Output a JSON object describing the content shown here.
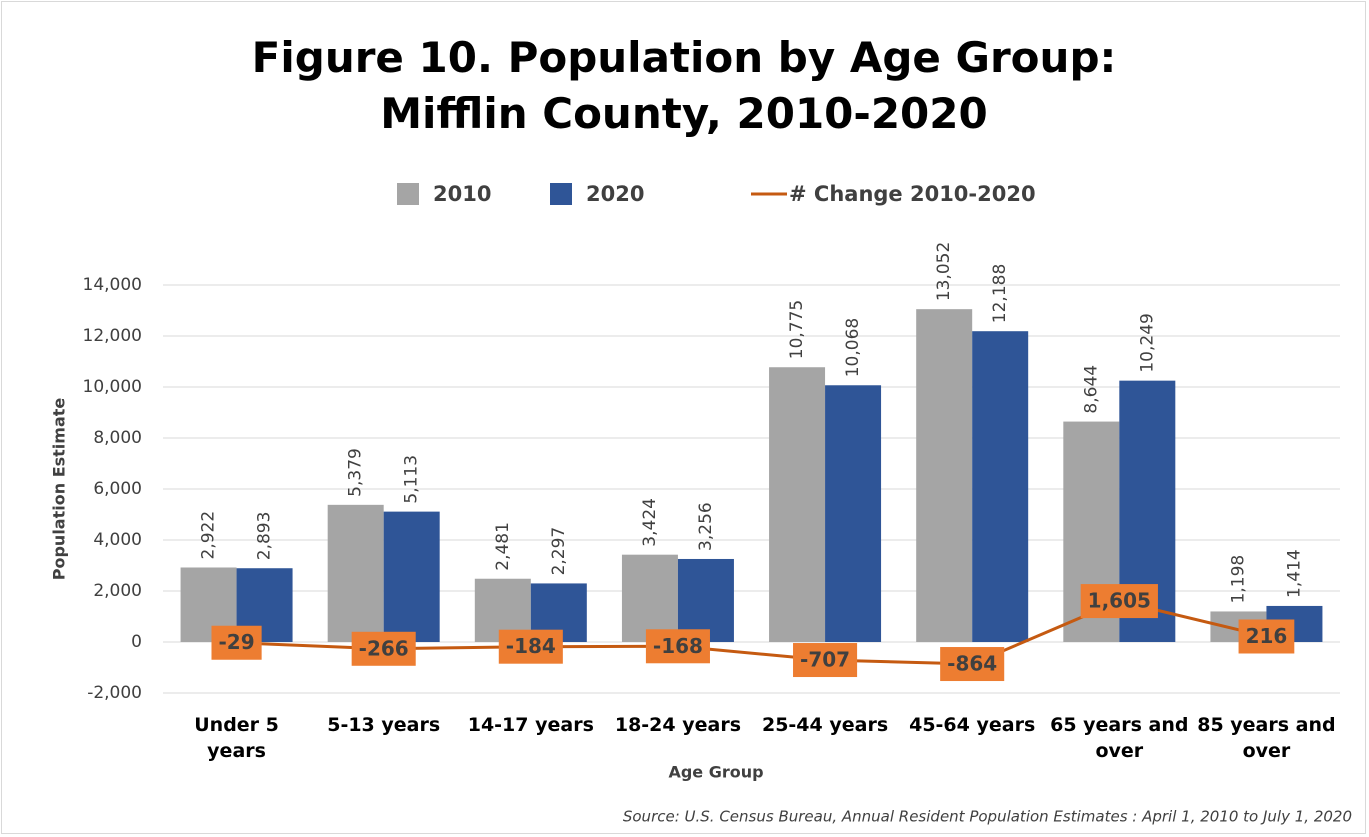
{
  "chart_data": {
    "type": "bar-line",
    "title": "Figure 10. Population by Age Group: Mifflin County, 2010-2020",
    "x_label": "Age Group",
    "y_label": "Population Estimate",
    "source": "Source: U.S. Census Bureau, Annual Resident Population Estimates : April 1, 2010 to July 1, 2020",
    "categories": [
      "Under 5 years",
      "5-13 years",
      "14-17 years",
      "18-24 years",
      "25-44 years",
      "45-64 years",
      "65 years and over",
      "85 years and over"
    ],
    "series": [
      {
        "name": "2010",
        "type": "bar",
        "color": "#a5a5a5",
        "values": [
          2922,
          5379,
          2481,
          3424,
          10775,
          13052,
          8644,
          1198
        ],
        "value_labels": [
          "2,922",
          "5,379",
          "2,481",
          "3,424",
          "10,775",
          "13,052",
          "8,644",
          "1,198"
        ]
      },
      {
        "name": "2020",
        "type": "bar",
        "color": "#2f5597",
        "values": [
          2893,
          5113,
          2297,
          3256,
          10068,
          12188,
          10249,
          1414
        ],
        "value_labels": [
          "2,893",
          "5,113",
          "2,297",
          "3,256",
          "10,068",
          "12,188",
          "10,249",
          "1,414"
        ]
      },
      {
        "name": "# Change 2010-2020",
        "type": "line",
        "color": "#c55a11",
        "label_color": "#ed7d31",
        "values": [
          -29,
          -266,
          -184,
          -168,
          -707,
          -864,
          1605,
          216
        ],
        "value_labels": [
          "-29",
          "-266",
          "-184",
          "-168",
          "-707",
          "-864",
          "1,605",
          "216"
        ]
      }
    ],
    "ylim": [
      -2000,
      14000
    ],
    "yticks": [
      {
        "value": -2000,
        "label": "-2,000"
      },
      0,
      {
        "value": 2000,
        "label": "2,000"
      },
      {
        "value": 4000,
        "label": "4,000"
      },
      {
        "value": 6000,
        "label": "6,000"
      },
      {
        "value": 8000,
        "label": "8,000"
      },
      {
        "value": 10000,
        "label": "10,000"
      },
      {
        "value": 12000,
        "label": "12,000"
      },
      {
        "value": 14000,
        "label": "14,000"
      }
    ],
    "grid": true,
    "legend": "top"
  }
}
